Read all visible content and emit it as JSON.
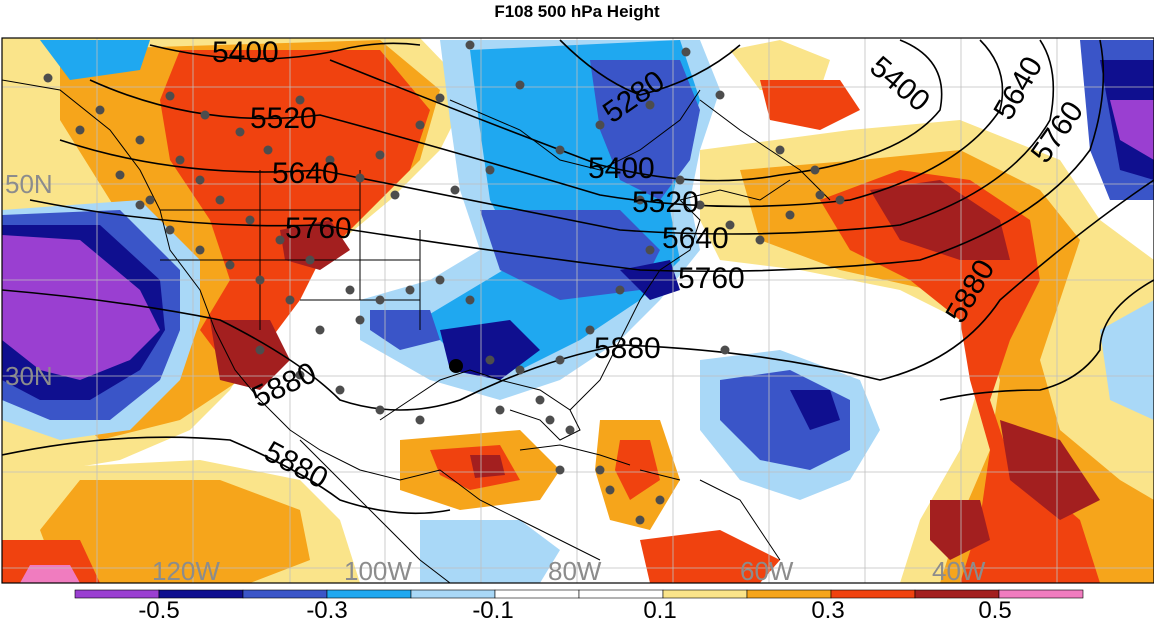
{
  "title": "F108 500 hPa Height",
  "contours": [
    {
      "label": "5280"
    },
    {
      "label": "5400"
    },
    {
      "label": "5520"
    },
    {
      "label": "5640"
    },
    {
      "label": "5760"
    },
    {
      "label": "5880"
    }
  ],
  "lat_labels": [
    "50N",
    "30N"
  ],
  "lon_labels": [
    "120W",
    "100W",
    "80W",
    "60W",
    "40W"
  ],
  "colorbar": {
    "tick_labels": [
      "-0.5",
      "-0.3",
      "-0.1",
      "0.1",
      "0.3",
      "0.5"
    ],
    "colors": [
      "#9a3fd1",
      "#0f0f8f",
      "#3a55c8",
      "#1fa8f0",
      "#a9d8f7",
      "#ffffff",
      "#ffffff",
      "#fae48a",
      "#f6a51b",
      "#f0420f",
      "#a31f1f",
      "#f07cbf"
    ]
  },
  "colors": {
    "land_line": "#000000",
    "grid": "#bfbfbf",
    "station_dot": "#4d4d4d"
  }
}
